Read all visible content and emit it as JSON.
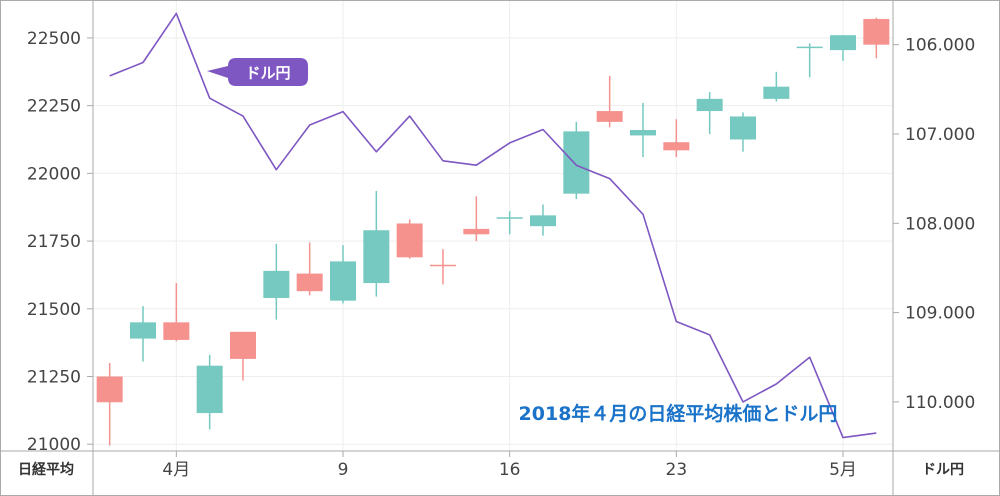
{
  "chart_data": {
    "type": "candlestick+line",
    "title": "2018年４月の日経平均株価とドル円",
    "x_ticks": [
      {
        "label": "4月",
        "index": 2
      },
      {
        "label": "9",
        "index": 7
      },
      {
        "label": "16",
        "index": 12
      },
      {
        "label": "23",
        "index": 17
      },
      {
        "label": "5月",
        "index": 22
      }
    ],
    "left_axis": {
      "name": "日経平均",
      "ticks": [
        "21000",
        "21250",
        "21500",
        "21750",
        "22000",
        "22250",
        "22500"
      ],
      "min": 20975,
      "max": 22640
    },
    "right_axis": {
      "name": "ドル円",
      "ticks": [
        "106.000",
        "107.000",
        "108.000",
        "109.000",
        "110.000"
      ],
      "top_value": 105.5,
      "bottom_value": 110.55,
      "inverted": true
    },
    "line_label": "ドル円",
    "colors": {
      "up": "#75c9c0",
      "down": "#f5928e",
      "line": "#7e57c2",
      "label_bg": "#7e57c2",
      "title": "#1a73c8",
      "grid": "#eeeeee",
      "axis": "#aaaaaa"
    },
    "candles": [
      {
        "o": 21250,
        "h": 21300,
        "l": 20995,
        "c": 21155
      },
      {
        "o": 21390,
        "h": 21510,
        "l": 21305,
        "c": 21450
      },
      {
        "o": 21450,
        "h": 21595,
        "l": 21380,
        "c": 21385
      },
      {
        "o": 21115,
        "h": 21330,
        "l": 21055,
        "c": 21290
      },
      {
        "o": 21415,
        "h": 21415,
        "l": 21235,
        "c": 21315
      },
      {
        "o": 21540,
        "h": 21740,
        "l": 21460,
        "c": 21640
      },
      {
        "o": 21630,
        "h": 21745,
        "l": 21550,
        "c": 21565
      },
      {
        "o": 21530,
        "h": 21735,
        "l": 21520,
        "c": 21675
      },
      {
        "o": 21595,
        "h": 21935,
        "l": 21545,
        "c": 21790
      },
      {
        "o": 21815,
        "h": 21830,
        "l": 21685,
        "c": 21690
      },
      {
        "o": 21660,
        "h": 21720,
        "l": 21590,
        "c": 21655
      },
      {
        "o": 21795,
        "h": 21915,
        "l": 21750,
        "c": 21775
      },
      {
        "o": 21835,
        "h": 21860,
        "l": 21775,
        "c": 21835
      },
      {
        "o": 21805,
        "h": 21885,
        "l": 21770,
        "c": 21845
      },
      {
        "o": 21925,
        "h": 22190,
        "l": 21905,
        "c": 22155
      },
      {
        "o": 22230,
        "h": 22360,
        "l": 22170,
        "c": 22190
      },
      {
        "o": 22140,
        "h": 22260,
        "l": 22060,
        "c": 22160
      },
      {
        "o": 22115,
        "h": 22200,
        "l": 22060,
        "c": 22085
      },
      {
        "o": 22230,
        "h": 22300,
        "l": 22145,
        "c": 22275
      },
      {
        "o": 22125,
        "h": 22225,
        "l": 22080,
        "c": 22210
      },
      {
        "o": 22275,
        "h": 22375,
        "l": 22265,
        "c": 22320
      },
      {
        "o": 22465,
        "h": 22480,
        "l": 22355,
        "c": 22465
      },
      {
        "o": 22455,
        "h": 22510,
        "l": 22415,
        "c": 22510
      },
      {
        "o": 22570,
        "h": 22575,
        "l": 22425,
        "c": 22475
      }
    ],
    "usdjpy": [
      106.35,
      106.2,
      105.65,
      106.6,
      106.8,
      107.4,
      106.9,
      106.75,
      107.2,
      106.8,
      107.3,
      107.35,
      107.1,
      106.95,
      107.35,
      107.5,
      107.9,
      109.1,
      109.25,
      110.0,
      109.8,
      109.5,
      110.4,
      110.35
    ]
  }
}
